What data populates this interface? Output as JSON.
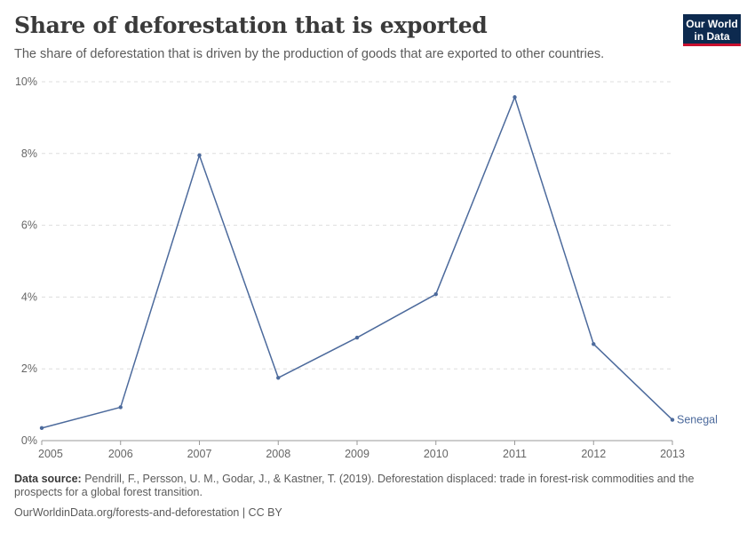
{
  "header": {
    "title": "Share of deforestation that is exported",
    "subtitle": "The share of deforestation that is driven by the production of goods that are exported to other countries.",
    "logo_line1": "Our World",
    "logo_line2": "in Data"
  },
  "chart_data": {
    "type": "line",
    "x": [
      2005,
      2006,
      2007,
      2008,
      2009,
      2010,
      2011,
      2012,
      2013
    ],
    "series": [
      {
        "name": "Senegal",
        "values": [
          0.35,
          0.93,
          7.95,
          1.75,
          2.87,
          4.08,
          9.57,
          2.69,
          0.58
        ]
      }
    ],
    "ylim": [
      0,
      10
    ],
    "yticks": [
      0,
      2,
      4,
      6,
      8,
      10
    ],
    "ytick_labels": [
      "0%",
      "2%",
      "4%",
      "6%",
      "8%",
      "10%"
    ],
    "xtick_labels": [
      "2005",
      "2006",
      "2007",
      "2008",
      "2009",
      "2010",
      "2011",
      "2012",
      "2013"
    ],
    "grid": true,
    "line_color": "#4c6a9c"
  },
  "footer": {
    "source_label": "Data source:",
    "source_text": "Pendrill, F., Persson, U. M., Godar, J., & Kastner, T. (2019). Deforestation displaced: trade in forest-risk commodities and the prospects for a global forest transition.",
    "url_text": "OurWorldinData.org/forests-and-deforestation | CC BY"
  }
}
